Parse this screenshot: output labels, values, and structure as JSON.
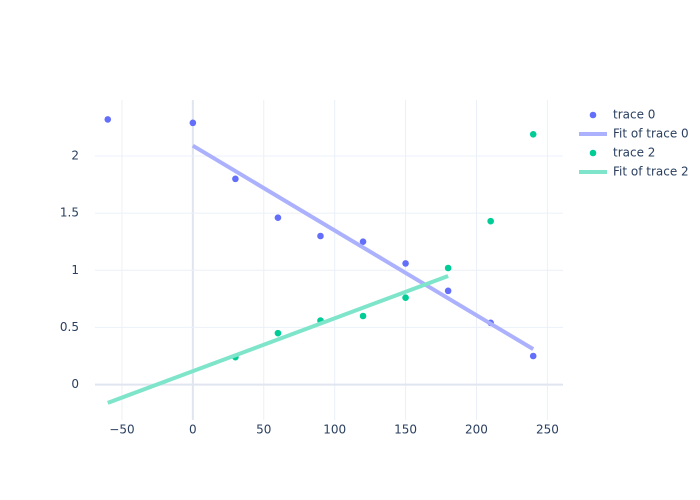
{
  "chart_data": {
    "type": "scatter",
    "xlim": [
      -69,
      261
    ],
    "ylim": [
      -0.31,
      2.49
    ],
    "xticks": [
      {
        "value": -50,
        "label": "−50"
      },
      0,
      50,
      100,
      150,
      200,
      250
    ],
    "yticks": [
      0,
      0.5,
      1,
      1.5,
      2
    ],
    "grid": true,
    "legend": "right",
    "series": [
      {
        "name": "trace 0",
        "mode": "markers",
        "color": "#636efa",
        "x": [
          -60,
          0,
          30,
          60,
          90,
          120,
          150,
          180,
          210,
          240
        ],
        "values": [
          2.32,
          2.29,
          1.8,
          1.46,
          1.3,
          1.25,
          1.06,
          0.82,
          0.54,
          0.25
        ]
      },
      {
        "name": "Fit of trace 0",
        "mode": "lines",
        "color": "#abb1fc",
        "x": [
          0,
          240
        ],
        "values": [
          2.09,
          0.31
        ]
      },
      {
        "name": "trace 2",
        "mode": "markers",
        "color": "#00cc96",
        "x": [
          30,
          60,
          90,
          120,
          150,
          180,
          210,
          240
        ],
        "values": [
          0.24,
          0.45,
          0.56,
          0.6,
          0.76,
          1.02,
          1.43,
          2.19
        ]
      },
      {
        "name": "Fit of trace 2",
        "mode": "lines",
        "color": "#7fe5ca",
        "x": [
          -60,
          180
        ],
        "values": [
          -0.16,
          0.95
        ]
      }
    ]
  }
}
